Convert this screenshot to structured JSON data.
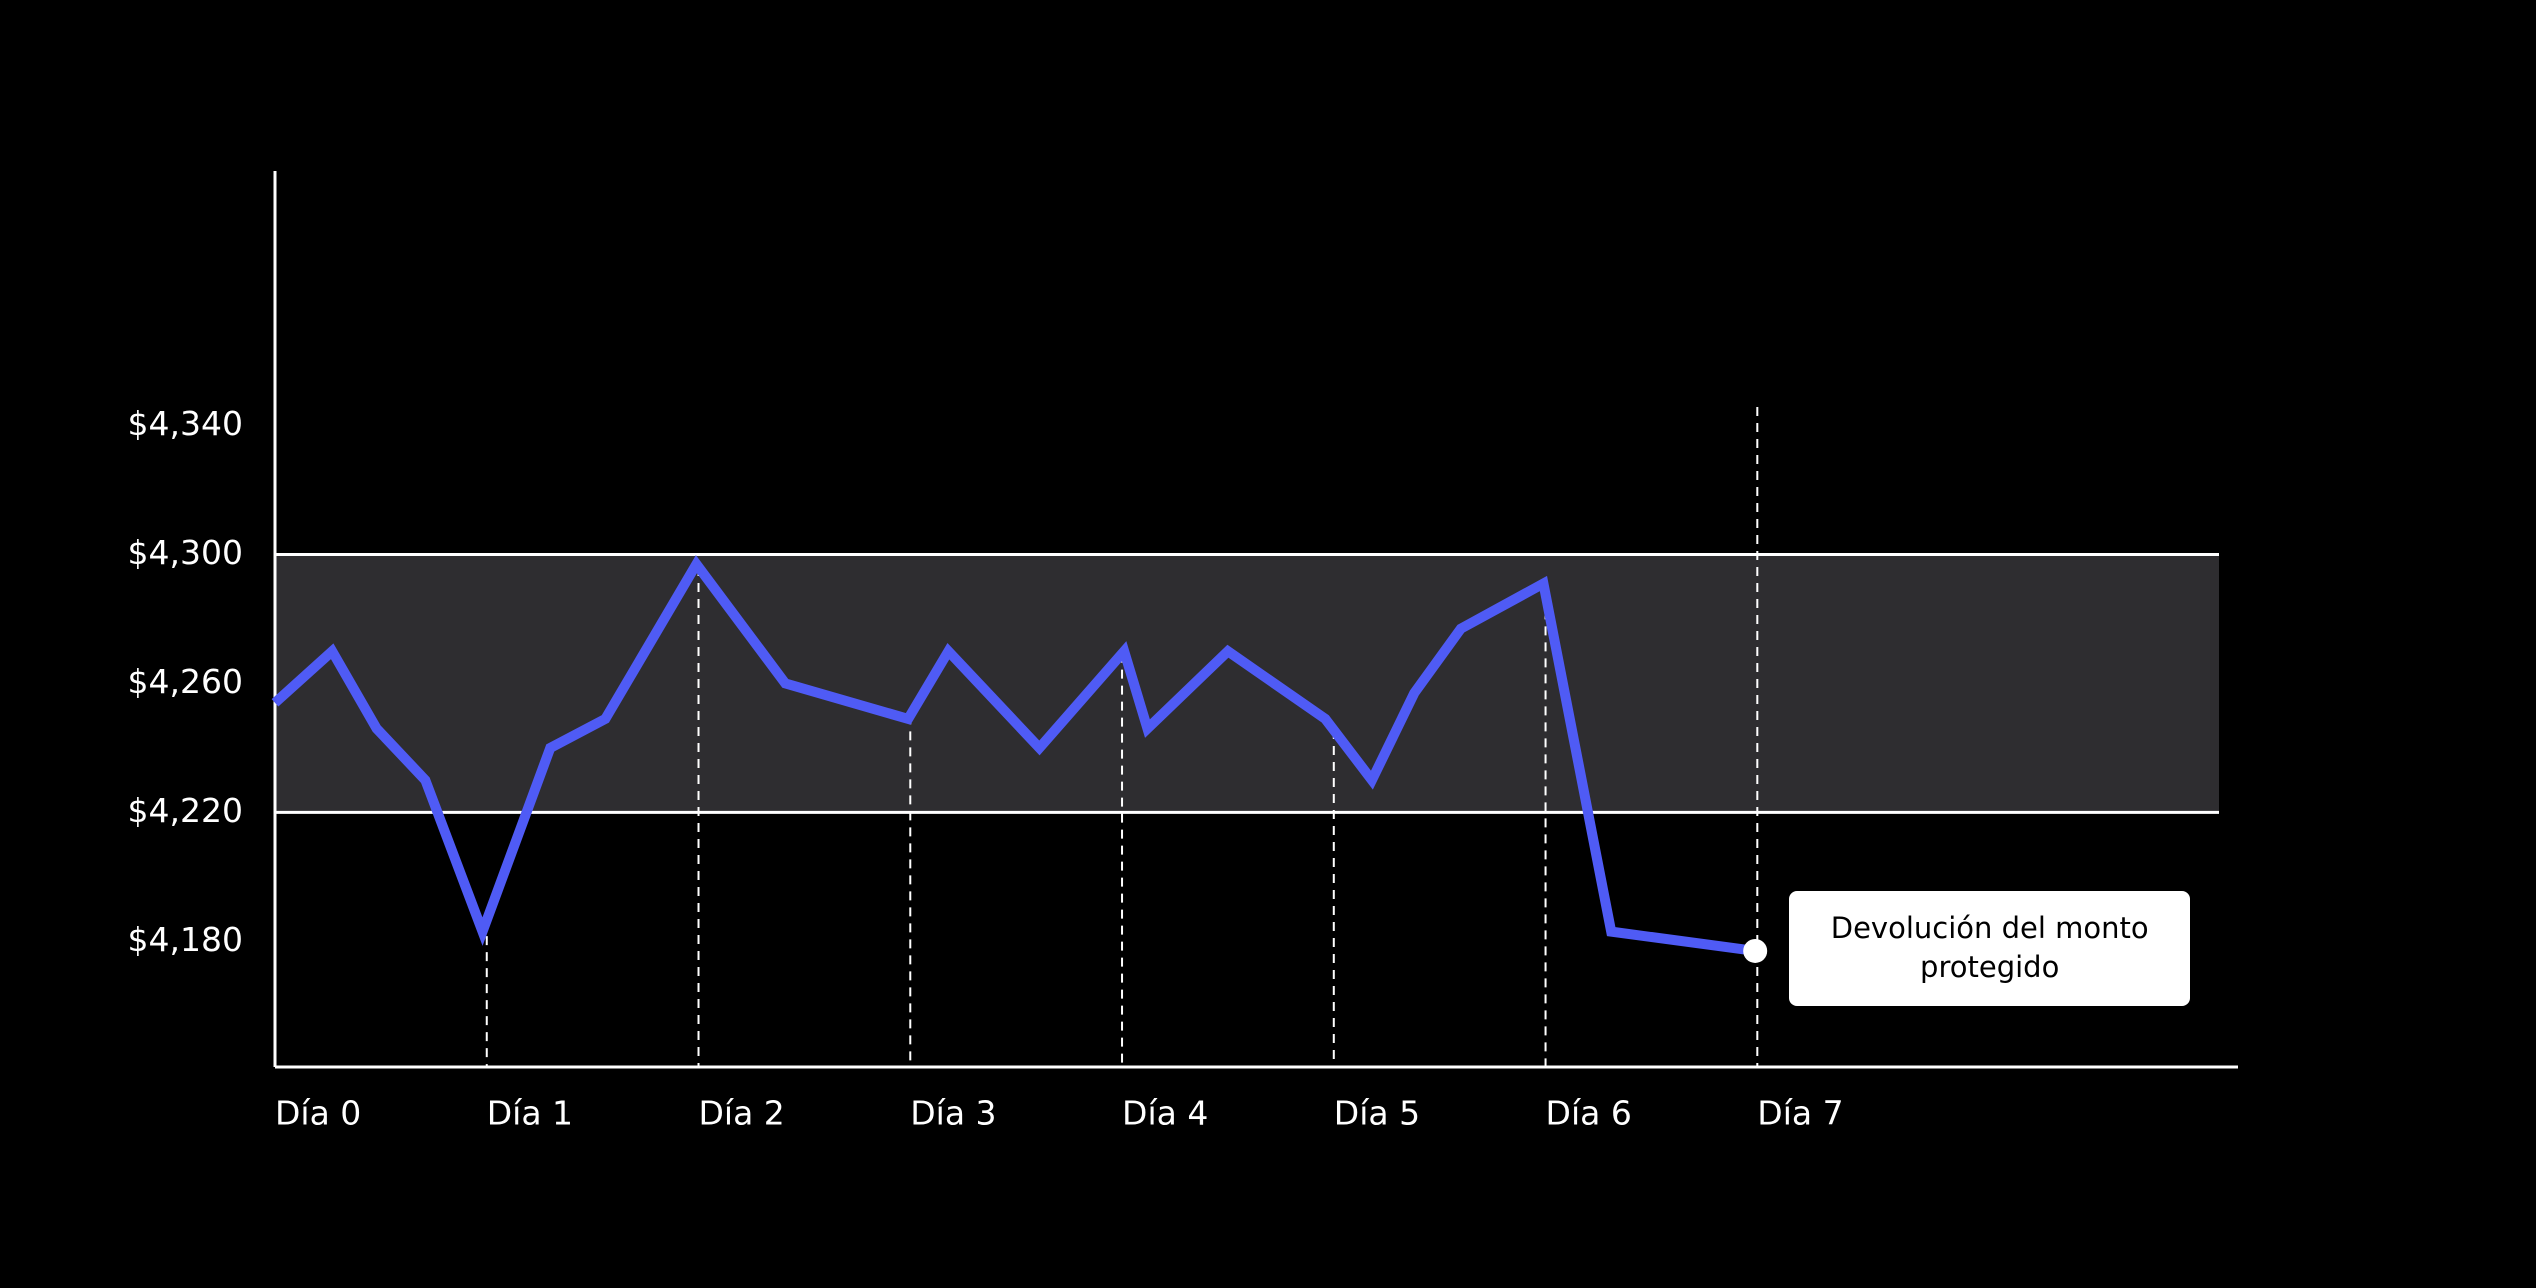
{
  "chart_data": {
    "type": "line",
    "series": [
      {
        "color": "#4f5bf5",
        "x": [
          0,
          0.27,
          0.48,
          0.71,
          0.98,
          1.3,
          1.56,
          1.99,
          2.41,
          2.99,
          3.18,
          3.61,
          4.01,
          4.12,
          4.5,
          4.96,
          5.18,
          5.38,
          5.6,
          5.99,
          6.31,
          6.99
        ],
        "values": [
          4254,
          4270,
          4246,
          4230,
          4183,
          4240,
          4249,
          4297,
          4260,
          4249,
          4270,
          4240,
          4270,
          4246,
          4270,
          4249,
          4230,
          4257,
          4277,
          4291,
          4183,
          4177
        ]
      }
    ],
    "band": [
      4220,
      4300
    ],
    "band_color": "#2e2d30",
    "xlim": [
      0,
      9.27
    ],
    "ylim": [
      4141,
      4419
    ],
    "xticks": [
      {
        "value": 0,
        "label": "Día 0"
      },
      {
        "value": 1,
        "label": "Día 1"
      },
      {
        "value": 2,
        "label": "Día 2"
      },
      {
        "value": 3,
        "label": "Día 3"
      },
      {
        "value": 4,
        "label": "Día 4"
      },
      {
        "value": 5,
        "label": "Día 5"
      },
      {
        "value": 6,
        "label": "Día 6"
      },
      {
        "value": 7,
        "label": "Día 7"
      }
    ],
    "yticks": [
      {
        "value": 4180,
        "label": "$4,180"
      },
      {
        "value": 4220,
        "label": "$4,220"
      },
      {
        "value": 4260,
        "label": "$4,260"
      },
      {
        "value": 4300,
        "label": "$4,300"
      },
      {
        "value": 4340,
        "label": "$4,340"
      }
    ],
    "annotation": "Devolución del monto protegido"
  }
}
